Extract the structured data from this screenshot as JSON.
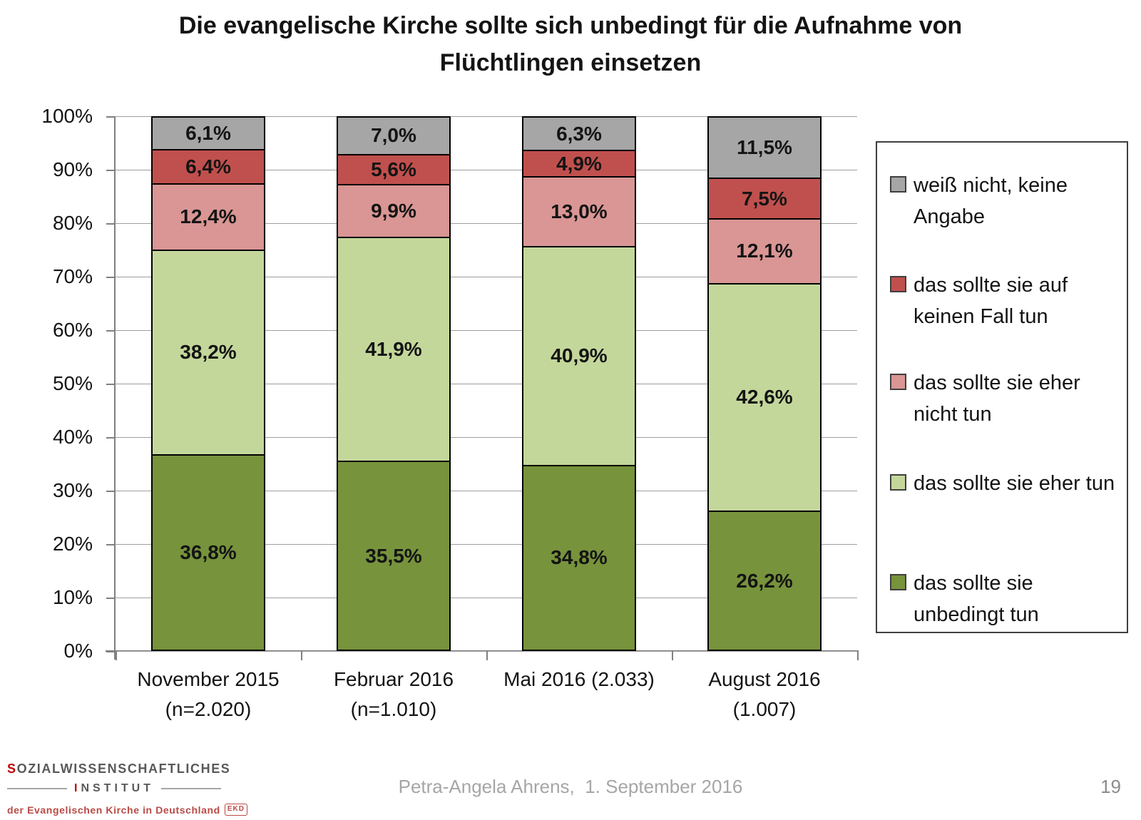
{
  "title": {
    "line1": "Die evangelische Kirche sollte sich unbedingt für die Aufnahme von",
    "line2": "Flüchtlingen einsetzen"
  },
  "chart_data": {
    "type": "bar",
    "stacked": true,
    "percent_scale": true,
    "grid": true,
    "legend_position": "right",
    "ylim": [
      0,
      100
    ],
    "y_ticks": [
      "100%",
      "90%",
      "80%",
      "70%",
      "60%",
      "50%",
      "40%",
      "30%",
      "20%",
      "10%",
      "0%"
    ],
    "categories": [
      "November 2015 (n=2.020)",
      "Februar 2016 (n=1.010)",
      "Mai 2016 (2.033)",
      "August 2016 (1.007)"
    ],
    "category_lines": [
      [
        "November 2015",
        "(n=2.020)"
      ],
      [
        "Februar 2016",
        "(n=1.010)"
      ],
      [
        "Mai 2016 (2.033)"
      ],
      [
        "August 2016",
        "(1.007)"
      ]
    ],
    "series": [
      {
        "name": "das sollte sie unbedingt tun",
        "color": "#77933C",
        "values": [
          36.8,
          35.5,
          34.8,
          26.2
        ],
        "labels": [
          "36,8%",
          "35,5%",
          "34,8%",
          "26,2%"
        ]
      },
      {
        "name": "das sollte sie eher tun",
        "color": "#C4D79B",
        "values": [
          38.2,
          41.9,
          40.9,
          42.6
        ],
        "labels": [
          "38,2%",
          "41,9%",
          "40,9%",
          "42,6%"
        ]
      },
      {
        "name": "das sollte sie eher nicht tun",
        "color": "#D99694",
        "values": [
          12.4,
          9.9,
          13.0,
          12.1
        ],
        "labels": [
          "12,4%",
          "9,9%",
          "13,0%",
          "12,1%"
        ]
      },
      {
        "name": "das sollte sie auf keinen Fall tun",
        "color": "#C0504D",
        "values": [
          6.4,
          5.6,
          4.9,
          7.5
        ],
        "labels": [
          "6,4%",
          "5,6%",
          "4,9%",
          "7,5%"
        ]
      },
      {
        "name": "weiß nicht, keine Angabe",
        "color": "#A6A6A6",
        "values": [
          6.1,
          7.0,
          6.3,
          11.5
        ],
        "labels": [
          "6,1%",
          "7,0%",
          "6,3%",
          "11,5%"
        ]
      }
    ],
    "legend": [
      {
        "lines": [
          "weiß nicht, keine",
          "Angabe"
        ],
        "color": "#A6A6A6"
      },
      {
        "lines": [
          "das sollte sie auf",
          "keinen Fall tun"
        ],
        "color": "#C0504D"
      },
      {
        "lines": [
          "das sollte sie eher",
          "nicht tun"
        ],
        "color": "#D99694"
      },
      {
        "lines": [
          "das sollte sie eher tun"
        ],
        "color": "#C4D79B"
      },
      {
        "lines": [
          "das sollte sie",
          "unbedingt tun"
        ],
        "color": "#77933C"
      }
    ]
  },
  "footer": {
    "logo": {
      "line1": "SOZIALWISSENSCHAFTLICHES",
      "line2": "INSTITUT",
      "line3": "der Evangelischen Kirche in Deutschland",
      "badge": "EKD"
    },
    "attribution": "Petra-Angela Ahrens,  1. September 2016",
    "page_number": "19"
  },
  "colors": {
    "grid": "#9E9E9E",
    "axis": "#808080",
    "segment_border": "#000000",
    "text": "#141414",
    "footer_text": "#A6A6A6",
    "logo_gray": "#595959",
    "logo_red": "#C00000",
    "logo_line3": "#B94A45"
  }
}
